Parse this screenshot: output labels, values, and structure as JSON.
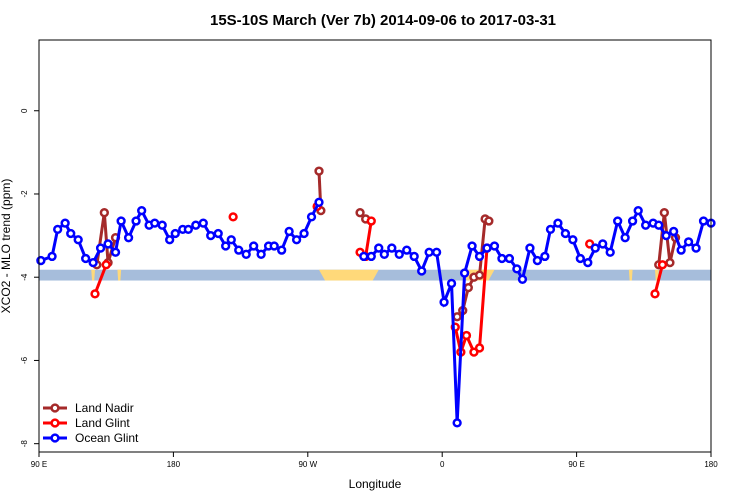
{
  "chart_data": {
    "type": "line",
    "title": "15S-10S March (Ver 7b)   2014-09-06 to 2017-03-31",
    "xlabel": "Longitude",
    "ylabel": "XCO2 - MLO trend (ppm)",
    "xlim": [
      90,
      450
    ],
    "ylim": [
      -8.2,
      1.7
    ],
    "x_ticks": [
      {
        "value": 90,
        "label": "90 E"
      },
      {
        "value": 162,
        "label": "180"
      },
      {
        "value": 234,
        "label": "90 W"
      },
      {
        "value": 306,
        "label": "0"
      },
      {
        "value": 378,
        "label": "90 E"
      },
      {
        "value": 450,
        "label": "180"
      }
    ],
    "y_ticks": [
      {
        "value": 0,
        "label": "0"
      },
      {
        "value": -2,
        "label": "-2"
      },
      {
        "value": -4,
        "label": "-4"
      },
      {
        "value": -6,
        "label": "-6"
      },
      {
        "value": -8,
        "label": "-8"
      }
    ],
    "grid": false,
    "legend_position": "bottom-left",
    "surface_band": {
      "y_range": [
        -4.08,
        -3.82
      ],
      "ocean_color": "#a6bddb",
      "land_color": "#ffd97a",
      "land_segments": [
        [
          118,
          120
        ],
        [
          132,
          134
        ],
        [
          240,
          272
        ],
        [
          316,
          334
        ],
        [
          406,
          408
        ],
        [
          420,
          422
        ]
      ]
    },
    "series": [
      {
        "name": "Land Nadir",
        "color": "#a52a2a",
        "points": [
          [
            121,
            -3.7
          ],
          [
            125,
            -2.45
          ],
          [
            127,
            -3.65
          ],
          [
            131,
            -3.05
          ],
          [
            240,
            -1.45
          ],
          [
            241,
            -2.4
          ],
          [
            262,
            -2.45
          ],
          [
            265,
            -2.6
          ],
          [
            314,
            -4.95
          ],
          [
            317,
            -4.8
          ],
          [
            320,
            -4.25
          ],
          [
            323,
            -4.0
          ],
          [
            326,
            -3.95
          ],
          [
            329,
            -2.6
          ],
          [
            331,
            -2.65
          ],
          [
            422,
            -3.7
          ],
          [
            425,
            -2.45
          ],
          [
            428,
            -3.65
          ],
          [
            431,
            -3.05
          ]
        ]
      },
      {
        "name": "Land Glint",
        "color": "#ff0000",
        "points": [
          [
            120,
            -4.4
          ],
          [
            126,
            -3.7
          ],
          [
            194,
            -2.55
          ],
          [
            239,
            -2.3
          ],
          [
            262,
            -3.4
          ],
          [
            265,
            -3.5
          ],
          [
            268,
            -2.65
          ],
          [
            313,
            -5.2
          ],
          [
            316,
            -5.8
          ],
          [
            319,
            -5.4
          ],
          [
            323,
            -5.8
          ],
          [
            326,
            -5.7
          ],
          [
            330,
            -3.3
          ],
          [
            385,
            -3.2
          ],
          [
            420,
            -4.4
          ],
          [
            424,
            -3.7
          ]
        ]
      },
      {
        "name": "Ocean Glint",
        "color": "#0000ff",
        "points": [
          [
            91,
            -3.6
          ],
          [
            97,
            -3.5
          ],
          [
            100,
            -2.85
          ],
          [
            104,
            -2.7
          ],
          [
            107,
            -2.95
          ],
          [
            111,
            -3.1
          ],
          [
            115,
            -3.55
          ],
          [
            119,
            -3.65
          ],
          [
            123,
            -3.3
          ],
          [
            127,
            -3.2
          ],
          [
            131,
            -3.4
          ],
          [
            134,
            -2.65
          ],
          [
            138,
            -3.05
          ],
          [
            142,
            -2.65
          ],
          [
            145,
            -2.4
          ],
          [
            149,
            -2.75
          ],
          [
            152,
            -2.7
          ],
          [
            156,
            -2.75
          ],
          [
            160,
            -3.1
          ],
          [
            163,
            -2.95
          ],
          [
            167,
            -2.85
          ],
          [
            170,
            -2.85
          ],
          [
            174,
            -2.75
          ],
          [
            178,
            -2.7
          ],
          [
            182,
            -3.0
          ],
          [
            186,
            -2.95
          ],
          [
            190,
            -3.25
          ],
          [
            193,
            -3.1
          ],
          [
            197,
            -3.35
          ],
          [
            201,
            -3.45
          ],
          [
            205,
            -3.25
          ],
          [
            209,
            -3.45
          ],
          [
            213,
            -3.25
          ],
          [
            216,
            -3.25
          ],
          [
            220,
            -3.35
          ],
          [
            224,
            -2.9
          ],
          [
            228,
            -3.1
          ],
          [
            232,
            -2.95
          ],
          [
            236,
            -2.55
          ],
          [
            240,
            -2.2
          ],
          [
            264,
            -3.5
          ],
          [
            268,
            -3.5
          ],
          [
            272,
            -3.3
          ],
          [
            275,
            -3.45
          ],
          [
            279,
            -3.3
          ],
          [
            283,
            -3.45
          ],
          [
            287,
            -3.35
          ],
          [
            291,
            -3.5
          ],
          [
            295,
            -3.85
          ],
          [
            299,
            -3.4
          ],
          [
            303,
            -3.4
          ],
          [
            307,
            -4.6
          ],
          [
            311,
            -4.15
          ],
          [
            314,
            -7.5
          ],
          [
            318,
            -3.9
          ],
          [
            322,
            -3.25
          ],
          [
            326,
            -3.5
          ],
          [
            330,
            -3.3
          ],
          [
            334,
            -3.25
          ],
          [
            338,
            -3.55
          ],
          [
            342,
            -3.55
          ],
          [
            346,
            -3.8
          ],
          [
            349,
            -4.05
          ],
          [
            353,
            -3.3
          ],
          [
            357,
            -3.6
          ],
          [
            361,
            -3.5
          ],
          [
            364,
            -2.85
          ],
          [
            368,
            -2.7
          ],
          [
            372,
            -2.95
          ],
          [
            376,
            -3.1
          ],
          [
            380,
            -3.55
          ],
          [
            384,
            -3.65
          ],
          [
            388,
            -3.3
          ],
          [
            392,
            -3.2
          ],
          [
            396,
            -3.4
          ],
          [
            400,
            -2.65
          ],
          [
            404,
            -3.05
          ],
          [
            408,
            -2.65
          ],
          [
            411,
            -2.4
          ],
          [
            415,
            -2.75
          ],
          [
            419,
            -2.7
          ],
          [
            422,
            -2.75
          ],
          [
            426,
            -3.0
          ],
          [
            430,
            -2.9
          ],
          [
            434,
            -3.35
          ],
          [
            438,
            -3.15
          ],
          [
            442,
            -3.3
          ],
          [
            446,
            -2.65
          ],
          [
            450,
            -2.7
          ]
        ]
      }
    ]
  }
}
